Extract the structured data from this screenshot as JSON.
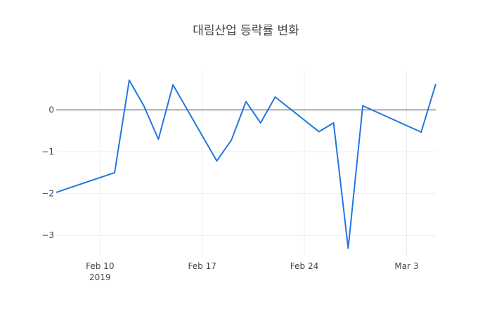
{
  "chart_data": {
    "type": "line",
    "title": "대림산업 등락률 변화",
    "xlabel": "",
    "ylabel": "",
    "x": [
      "2019-02-07",
      "2019-02-11",
      "2019-02-12",
      "2019-02-13",
      "2019-02-14",
      "2019-02-15",
      "2019-02-18",
      "2019-02-19",
      "2019-02-20",
      "2019-02-21",
      "2019-02-22",
      "2019-02-25",
      "2019-02-26",
      "2019-02-27",
      "2019-02-28",
      "2019-03-04",
      "2019-03-05"
    ],
    "series": [
      {
        "values": [
          -1.97,
          -1.5,
          0.71,
          0.1,
          -0.7,
          0.6,
          -1.22,
          -0.72,
          0.2,
          -0.31,
          0.31,
          -0.52,
          -0.31,
          -3.31,
          0.1,
          -0.53,
          0.62
        ]
      }
    ],
    "xlim": [
      "2019-02-07",
      "2019-03-05"
    ],
    "ylim": [
      -3.5,
      0.95
    ],
    "x_ticks": [
      {
        "date": "2019-02-10",
        "label": "Feb 10",
        "sublabel": "2019"
      },
      {
        "date": "2019-02-17",
        "label": "Feb 17",
        "sublabel": ""
      },
      {
        "date": "2019-02-24",
        "label": "Feb 24",
        "sublabel": ""
      },
      {
        "date": "2019-03-03",
        "label": "Mar 3",
        "sublabel": ""
      }
    ],
    "y_ticks": [
      {
        "value": 0,
        "label": "0"
      },
      {
        "value": -1,
        "label": "−1"
      },
      {
        "value": -2,
        "label": "−2"
      },
      {
        "value": -3,
        "label": "−3"
      }
    ],
    "zero_line": true,
    "grid": true,
    "line_color": "#1f77e0"
  }
}
